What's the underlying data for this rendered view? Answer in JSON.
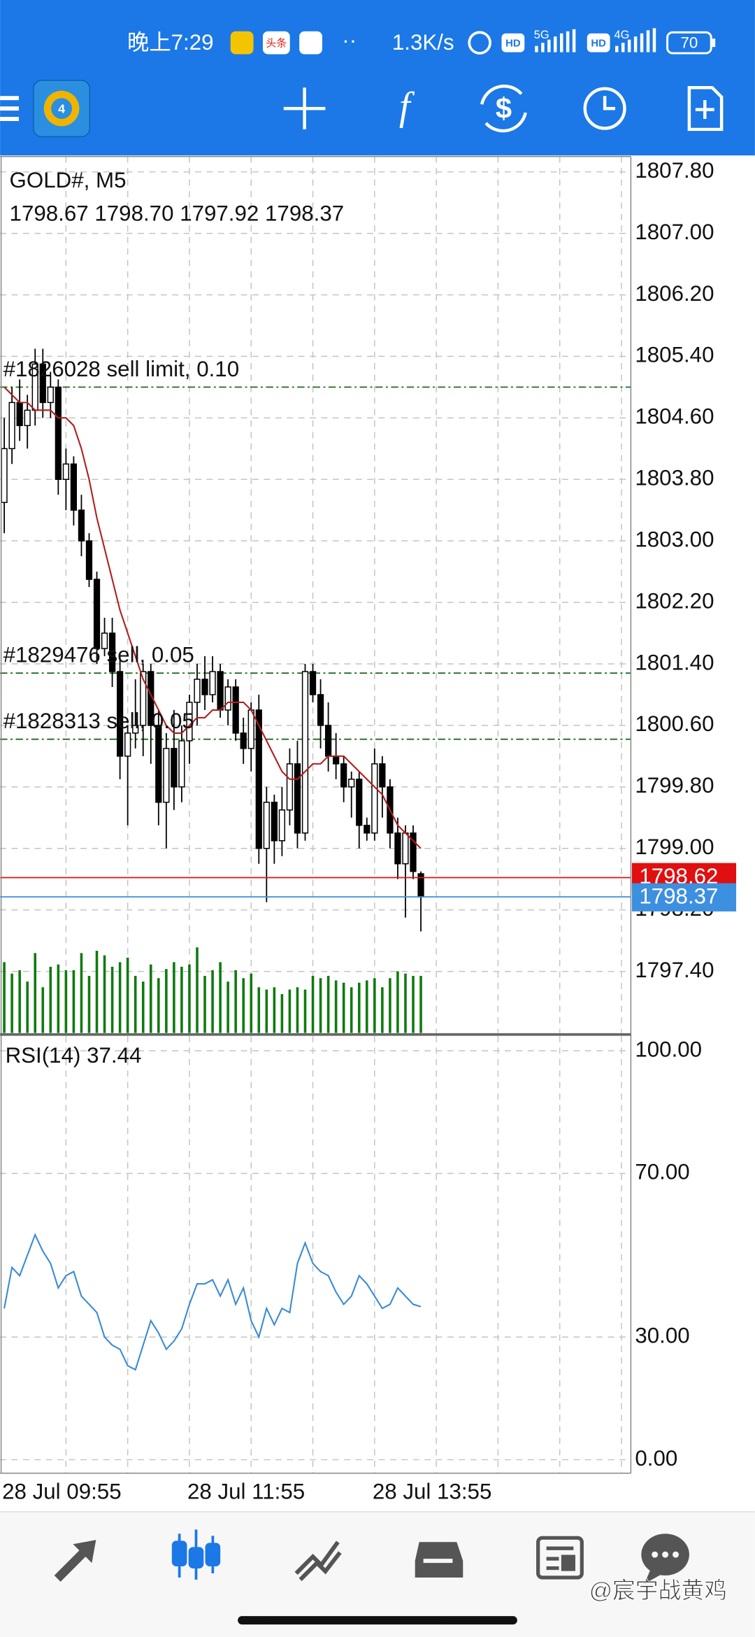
{
  "status_bar": {
    "time": "晚上7:29",
    "app_icon": "头条",
    "speed": "1.3K/s",
    "hd": "HD",
    "net1": "5G",
    "net2": "4G",
    "battery": "70"
  },
  "chart_data": [
    {
      "type": "candlestick",
      "title": "GOLD#, M5",
      "subtitle": "1798.67 1798.70 1797.92 1798.37",
      "categories": [
        "28 Jul 09:55",
        null,
        null,
        null,
        null,
        null,
        null,
        null,
        null,
        null,
        null,
        null,
        null,
        null,
        null,
        null,
        null,
        null,
        null,
        null,
        null,
        null,
        null,
        null,
        "28 Jul 11:55",
        null,
        null,
        null,
        null,
        null,
        null,
        null,
        null,
        null,
        null,
        null,
        null,
        null,
        null,
        null,
        null,
        null,
        null,
        null,
        null,
        null,
        null,
        null,
        "28 Jul 13:55",
        null,
        null,
        null,
        null,
        null,
        null
      ],
      "open": [
        1803.5,
        1804.2,
        1804.8,
        1804.5,
        1804.7,
        1805.3,
        1804.8,
        1805.0,
        1803.8,
        1804.0,
        1803.4,
        1803.0,
        1802.5,
        1801.6,
        1801.8,
        1801.3,
        1800.2,
        1800.5,
        1800.6,
        1801.3,
        1800.6,
        1799.6,
        1800.3,
        1799.8,
        1800.4,
        1800.9,
        1801.2,
        1801.0,
        1801.3,
        1800.8,
        1801.1,
        1800.5,
        1800.3,
        1800.8,
        1799.0,
        1799.6,
        1799.1,
        1799.5,
        1800.1,
        1799.2,
        1801.3,
        1801.0,
        1800.6,
        1800.2,
        1800.1,
        1799.8,
        1799.9,
        1799.3,
        1799.2,
        1800.1,
        1799.8,
        1799.2,
        1798.8,
        1799.2,
        1798.67
      ],
      "high": [
        1804.6,
        1805.0,
        1805.1,
        1804.9,
        1805.5,
        1805.5,
        1805.2,
        1805.1,
        1804.2,
        1804.1,
        1803.6,
        1803.1,
        1802.6,
        1802.0,
        1802.0,
        1801.5,
        1800.6,
        1801.2,
        1801.4,
        1801.4,
        1800.8,
        1800.5,
        1800.8,
        1800.6,
        1801.0,
        1801.4,
        1801.5,
        1801.5,
        1801.4,
        1801.2,
        1801.2,
        1800.7,
        1800.9,
        1801.0,
        1799.8,
        1799.7,
        1799.8,
        1800.3,
        1800.4,
        1801.4,
        1801.4,
        1801.2,
        1800.9,
        1800.5,
        1800.2,
        1800.0,
        1800.0,
        1799.4,
        1800.3,
        1800.2,
        1799.9,
        1799.4,
        1799.3,
        1799.3,
        1798.7
      ],
      "low": [
        1803.1,
        1804.0,
        1804.3,
        1804.2,
        1804.5,
        1804.6,
        1804.6,
        1803.6,
        1803.4,
        1803.2,
        1802.8,
        1802.4,
        1801.4,
        1801.5,
        1801.1,
        1799.9,
        1799.3,
        1800.3,
        1800.2,
        1800.1,
        1799.3,
        1799.0,
        1799.5,
        1799.6,
        1800.1,
        1800.6,
        1800.8,
        1800.9,
        1800.7,
        1800.6,
        1800.4,
        1800.1,
        1800.0,
        1798.8,
        1798.3,
        1798.8,
        1798.9,
        1799.3,
        1799.0,
        1799.1,
        1800.9,
        1800.3,
        1800.0,
        1799.9,
        1799.6,
        1799.4,
        1799.0,
        1799.1,
        1799.1,
        1799.4,
        1799.0,
        1798.6,
        1798.1,
        1798.6,
        1797.92
      ],
      "close": [
        1804.2,
        1804.8,
        1804.5,
        1804.7,
        1805.3,
        1804.8,
        1805.0,
        1803.8,
        1804.0,
        1803.4,
        1803.0,
        1802.5,
        1801.6,
        1801.8,
        1801.3,
        1800.2,
        1800.5,
        1800.6,
        1801.3,
        1800.6,
        1799.6,
        1800.3,
        1799.8,
        1800.4,
        1800.9,
        1801.2,
        1801.0,
        1801.3,
        1800.8,
        1801.1,
        1800.5,
        1800.3,
        1800.8,
        1799.0,
        1799.6,
        1799.1,
        1799.5,
        1800.1,
        1799.2,
        1801.3,
        1801.0,
        1800.6,
        1800.2,
        1800.1,
        1799.8,
        1799.9,
        1799.3,
        1799.2,
        1800.1,
        1799.8,
        1799.2,
        1798.8,
        1799.2,
        1798.7,
        1798.37
      ],
      "ma_values": [
        1805.0,
        1804.9,
        1804.8,
        1804.8,
        1804.7,
        1804.7,
        1804.7,
        1804.6,
        1804.6,
        1804.5,
        1804.2,
        1803.8,
        1803.3,
        1802.9,
        1802.5,
        1802.1,
        1801.8,
        1801.5,
        1801.2,
        1801.0,
        1800.8,
        1800.6,
        1800.5,
        1800.5,
        1800.6,
        1800.7,
        1800.7,
        1800.8,
        1800.8,
        1800.9,
        1800.9,
        1800.9,
        1800.8,
        1800.6,
        1800.4,
        1800.2,
        1800.0,
        1799.9,
        1799.9,
        1800.0,
        1800.1,
        1800.1,
        1800.2,
        1800.2,
        1800.2,
        1800.1,
        1800.0,
        1799.9,
        1799.8,
        1799.7,
        1799.5,
        1799.3,
        1799.2,
        1799.1,
        1799.0
      ],
      "ma_color": "#b01e1e",
      "volumes": [
        62,
        52,
        55,
        45,
        70,
        40,
        58,
        60,
        55,
        55,
        70,
        50,
        72,
        68,
        58,
        62,
        66,
        50,
        45,
        60,
        48,
        56,
        62,
        58,
        60,
        75,
        50,
        55,
        62,
        45,
        55,
        48,
        52,
        40,
        38,
        40,
        34,
        38,
        40,
        38,
        50,
        48,
        50,
        46,
        44,
        40,
        44,
        46,
        48,
        40,
        48,
        54,
        52,
        50,
        50
      ],
      "volume_color": "#0f7a0f",
      "orders": [
        {
          "label": "#1826028 sell limit, 0.10",
          "value": 1805.0
        },
        {
          "label": "#1829476 sell, 0.05",
          "value": 1801.28
        },
        {
          "label": "#1828313 sell, 0.05",
          "value": 1800.42
        }
      ],
      "order_color": "#1d6b1d",
      "ask": 1798.62,
      "ask_color": "#e01010",
      "bid_color": "#3d8fe0",
      "ylim": [
        1796.6,
        1808.0
      ],
      "yticks": [
        {
          "value": 1807.8,
          "label": "1807.80"
        },
        {
          "value": 1807.0,
          "label": "1807.00"
        },
        {
          "value": 1806.2,
          "label": "1806.20"
        },
        {
          "value": 1805.4,
          "label": "1805.40"
        },
        {
          "value": 1804.6,
          "label": "1804.60"
        },
        {
          "value": 1803.8,
          "label": "1803.80"
        },
        {
          "value": 1803.0,
          "label": "1803.00"
        },
        {
          "value": 1802.2,
          "label": "1802.20"
        },
        {
          "value": 1801.4,
          "label": "1801.40"
        },
        {
          "value": 1800.6,
          "label": "1800.60"
        },
        {
          "value": 1799.8,
          "label": "1799.80"
        },
        {
          "value": 1799.0,
          "label": "1799.00"
        },
        {
          "value": 1798.2,
          "label": "1798.20"
        },
        {
          "value": 1797.4,
          "label": "1797.40"
        }
      ],
      "grid": true
    },
    {
      "type": "line",
      "title": "RSI(14)",
      "values": [
        37,
        47,
        45,
        50,
        55,
        51,
        48,
        42,
        45,
        46,
        40,
        38,
        36,
        30,
        28,
        27,
        23,
        22,
        28,
        34,
        31,
        27,
        29,
        32,
        38,
        43,
        43,
        44,
        40,
        44,
        38,
        42,
        34,
        30,
        37,
        33,
        37,
        36,
        48,
        53,
        48,
        46,
        45,
        41,
        38,
        40,
        45,
        43,
        40,
        37,
        38,
        42,
        40,
        38,
        37.44
      ],
      "color": "#3a8bd4",
      "ylim": [
        -3.3,
        103.6
      ],
      "yticks": [
        {
          "value": 100,
          "label": "100.00"
        },
        {
          "value": 70,
          "label": "70.00"
        },
        {
          "value": 30,
          "label": "30.00"
        },
        {
          "value": 0,
          "label": "0.00"
        }
      ],
      "grid": true
    }
  ],
  "watermark": "@宸宇战黄鸡"
}
